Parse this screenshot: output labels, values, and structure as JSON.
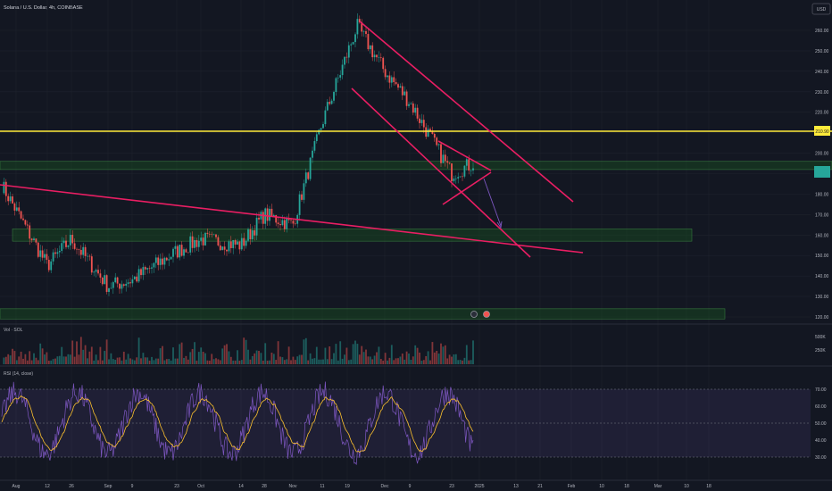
{
  "header": {
    "symbol_title": "Solana / U.S. Dollar, 4h, COINBASE",
    "currency": "USD"
  },
  "panes": {
    "volume_label": "Vol · SOL",
    "rsi_label": "RSI (14, close)"
  },
  "colors": {
    "background": "#131722",
    "up_candle": "#26a69a",
    "down_candle": "#ef5350",
    "trendline": "#e91e63",
    "horizontal_level": "#ffeb3b",
    "zone_fill": "#1b5e20",
    "rsi_line": "#7e57c2",
    "rsi_ma": "#fbc02d",
    "projection_arrow": "#7e57c2",
    "price_tag_current": "#26a69a"
  },
  "price_axis": {
    "ticks": [
      "260.00",
      "250.00",
      "240.00",
      "230.00",
      "220.00",
      "210.00",
      "200.00",
      "190.00",
      "180.00",
      "170.00",
      "160.00",
      "150.00",
      "140.00",
      "130.00",
      "120.00"
    ],
    "level_label": "210.90"
  },
  "volume_axis": {
    "ticks": [
      "500K",
      "250K"
    ]
  },
  "rsi_axis": {
    "ticks": [
      "70.00",
      "60.00",
      "50.00",
      "40.00",
      "30.00"
    ]
  },
  "time_axis": {
    "ticks": [
      "Aug",
      "12",
      "26",
      "Sep",
      "9",
      "23",
      "Oct",
      "14",
      "28",
      "Nov",
      "11",
      "19",
      "Dec",
      "9",
      "23",
      "2025",
      "13",
      "21",
      "Feb",
      "10",
      "18",
      "Mar",
      "10",
      "18"
    ]
  },
  "chart_data": {
    "type": "candlestick",
    "title": "Solana / U.S. Dollar, 4h, COINBASE",
    "ylim": [
      118,
      268
    ],
    "series": [
      {
        "name": "SOL/USD",
        "x": [
          "Aug",
          "12",
          "26",
          "Sep",
          "9",
          "23",
          "Oct",
          "14",
          "28",
          "Nov",
          "11",
          "19",
          "Dec",
          "9",
          "23",
          "2025"
        ],
        "close": [
          186,
          145,
          158,
          135,
          138,
          152,
          158,
          155,
          170,
          165,
          215,
          262,
          240,
          225,
          190,
          195
        ]
      }
    ],
    "horizontal_levels": [
      210.9
    ],
    "zones": [
      {
        "from": 192,
        "to": 196
      },
      {
        "from": 157,
        "to": 163
      },
      {
        "from": 119,
        "to": 124
      }
    ],
    "rsi": {
      "range": [
        20,
        80
      ],
      "band": [
        30,
        70
      ],
      "mid": 50
    }
  }
}
